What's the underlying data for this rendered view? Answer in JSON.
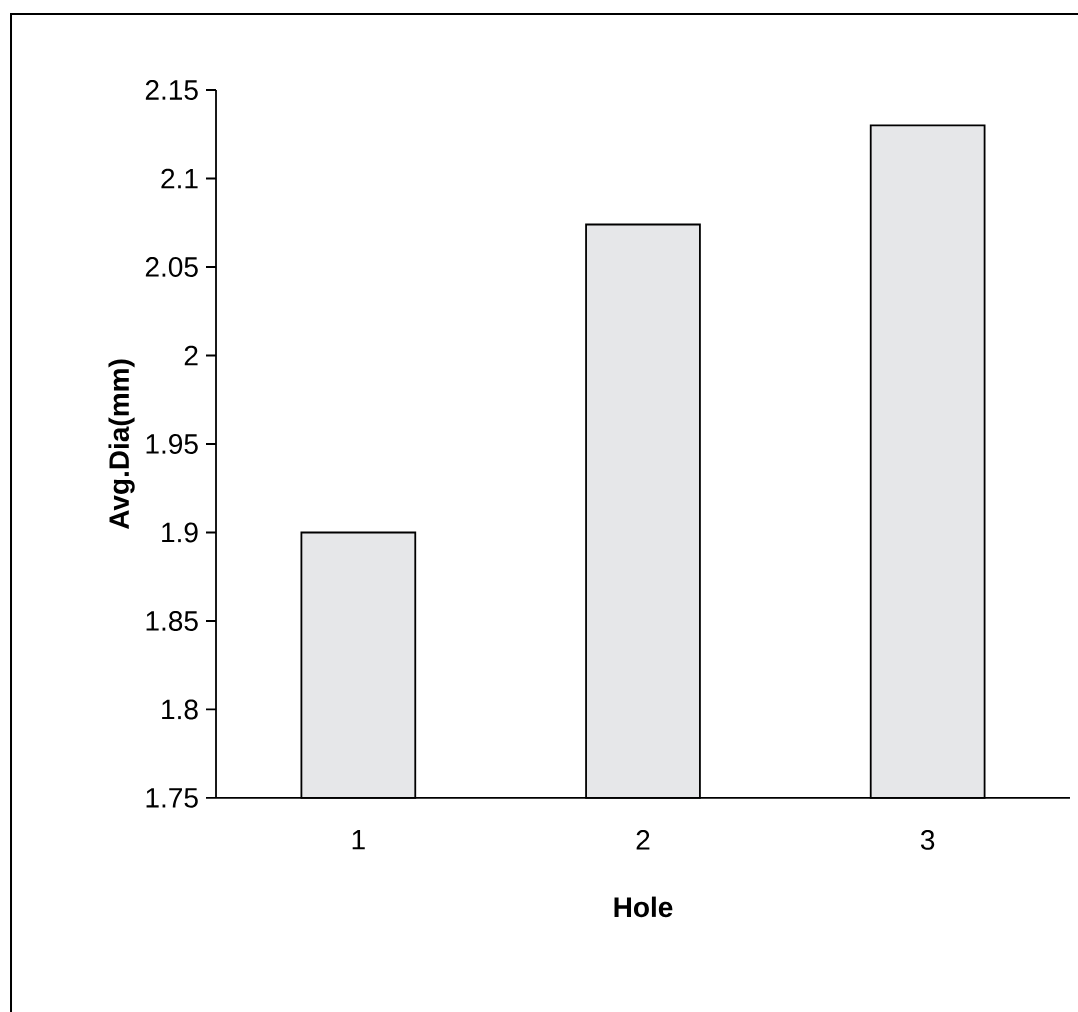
{
  "chart_data": {
    "type": "bar",
    "xlabel": "Hole",
    "ylabel": "Avg.Dia(mm)",
    "categories": [
      "1",
      "2",
      "3"
    ],
    "values": [
      1.9,
      2.074,
      2.13
    ],
    "color": "#e6e7e9",
    "ylim": [
      1.75,
      2.15
    ],
    "yticks": [
      1.75,
      1.8,
      1.85,
      1.9,
      1.95,
      2,
      2.05,
      2.1,
      2.15
    ]
  }
}
